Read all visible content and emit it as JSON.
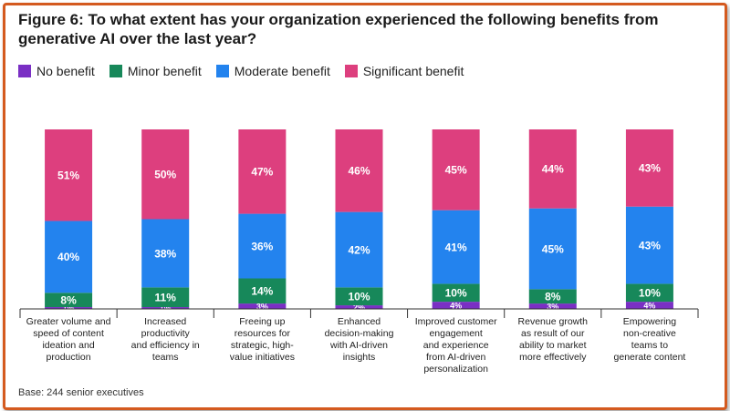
{
  "title": "Figure 6: To what extent has your organization experienced the following benefits from generative AI over the last year?",
  "legend": [
    {
      "label": "No benefit",
      "color": "#7a2fc4"
    },
    {
      "label": "Minor benefit",
      "color": "#17885a"
    },
    {
      "label": "Moderate benefit",
      "color": "#2383ee"
    },
    {
      "label": "Significant benefit",
      "color": "#dd3f7e"
    }
  ],
  "base_note": "Base: 244 senior executives",
  "chart_data": {
    "type": "bar",
    "stacked": true,
    "unit": "%",
    "categories": [
      "Greater volume and speed of content ideation and production",
      "Increased productivity and efficiency in teams",
      "Freeing up resources for strategic, high-value initiatives",
      "Enhanced decision-making with AI-driven insights",
      "Improved customer engagement and experience from AI-driven personalization",
      "Revenue growth as result of our ability to market more effectively",
      "Empowering non-creative teams to generate content"
    ],
    "category_lines": [
      [
        "Greater volume and",
        "speed of content",
        "ideation and",
        "production"
      ],
      [
        "Increased",
        "productivity",
        "and efficiency in",
        "teams"
      ],
      [
        "Freeing up",
        "resources for",
        "strategic, high-",
        "value initiatives"
      ],
      [
        "Enhanced",
        "decision-making",
        "with AI-driven",
        "insights"
      ],
      [
        "Improved customer",
        "engagement",
        "and experience",
        "from AI-driven",
        "personalization"
      ],
      [
        "Revenue growth",
        "as result of our",
        "ability to market",
        "more effectively"
      ],
      [
        "Empowering",
        "non-creative",
        "teams to",
        "generate content"
      ]
    ],
    "series": [
      {
        "name": "No benefit",
        "values": [
          1,
          1,
          3,
          2,
          4,
          3,
          4
        ]
      },
      {
        "name": "Minor benefit",
        "values": [
          8,
          11,
          14,
          10,
          10,
          8,
          10
        ]
      },
      {
        "name": "Moderate benefit",
        "values": [
          40,
          38,
          36,
          42,
          41,
          45,
          43
        ]
      },
      {
        "name": "Significant benefit",
        "values": [
          51,
          50,
          47,
          46,
          45,
          44,
          43
        ]
      }
    ]
  }
}
